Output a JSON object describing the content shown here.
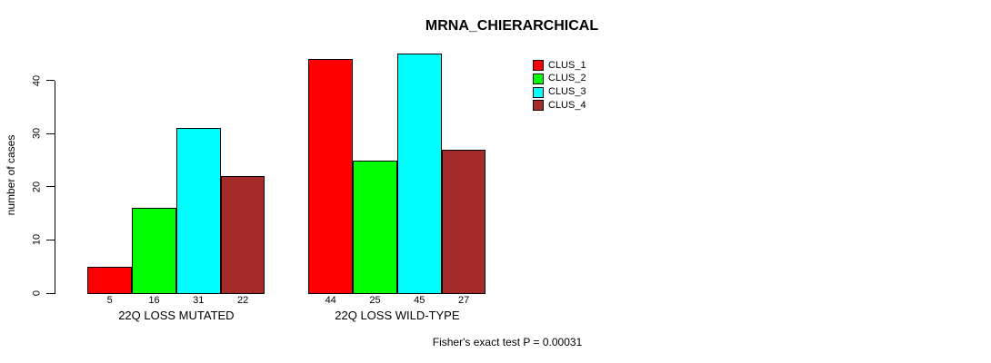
{
  "chart_data": {
    "type": "bar",
    "title": "MRNA_CHIERARCHICAL",
    "ylabel": "number of cases",
    "xlabel": "",
    "footnote": "Fisher's exact test P = 0.00031",
    "categories": [
      "22Q LOSS MUTATED",
      "22Q LOSS WILD-TYPE"
    ],
    "series": [
      {
        "name": "CLUS_1",
        "color": "#ff0000",
        "values": [
          5,
          44
        ]
      },
      {
        "name": "CLUS_2",
        "color": "#00ff00",
        "values": [
          16,
          25
        ]
      },
      {
        "name": "CLUS_3",
        "color": "#00ffff",
        "values": [
          31,
          45
        ]
      },
      {
        "name": "CLUS_4",
        "color": "#a52a2a",
        "values": [
          22,
          27
        ]
      }
    ],
    "bar_value_labels": [
      [
        "5",
        "16",
        "31",
        "22"
      ],
      [
        "44",
        "25",
        "45",
        "27"
      ]
    ],
    "y_ticks": [
      0,
      10,
      20,
      30,
      40
    ],
    "ylim": [
      0,
      45.9
    ],
    "grid": false,
    "legend_position": "top-right",
    "legend_entries": [
      "CLUS_1",
      "CLUS_2",
      "CLUS_3",
      "CLUS_4"
    ],
    "bar_border_color": "#000000",
    "axis_color": "#000000",
    "background_color": "#ffffff",
    "text_color": "#000000"
  }
}
